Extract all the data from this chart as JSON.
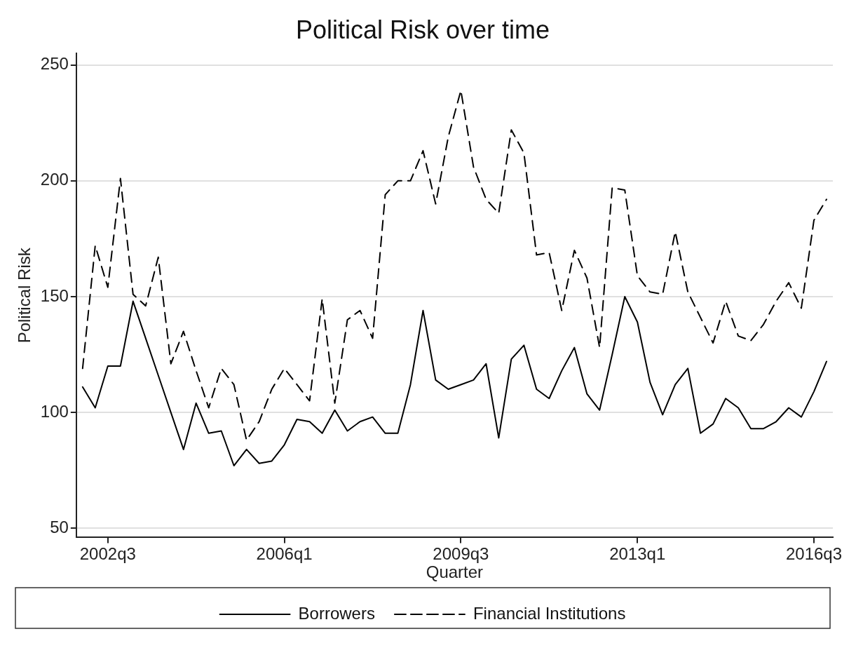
{
  "chart_data": {
    "type": "line",
    "title": "Political Risk over time",
    "xlabel": "Quarter",
    "ylabel": "Political Risk",
    "categories": [
      null,
      null,
      "2002q3",
      null,
      null,
      null,
      null,
      null,
      null,
      null,
      null,
      null,
      null,
      null,
      null,
      null,
      "2006q1",
      null,
      null,
      null,
      null,
      null,
      null,
      null,
      null,
      null,
      null,
      null,
      null,
      null,
      "2009q3",
      null,
      null,
      null,
      null,
      null,
      null,
      null,
      null,
      null,
      null,
      null,
      null,
      null,
      "2013q1",
      null,
      null,
      null,
      null,
      null,
      null,
      null,
      null,
      null,
      null,
      null,
      null,
      null,
      "2016q3",
      null
    ],
    "series": [
      {
        "name": "Borrowers",
        "color": "#000000",
        "line_style": "solid",
        "values": [
          111,
          102,
          120,
          120,
          148,
          132,
          116,
          100,
          84,
          104,
          91,
          92,
          77,
          84,
          78,
          79,
          86,
          97,
          96,
          91,
          101,
          92,
          96,
          98,
          91,
          91,
          112,
          144,
          114,
          110,
          112,
          114,
          121,
          89,
          123,
          129,
          110,
          106,
          118,
          128,
          108,
          101,
          125,
          150,
          139,
          113,
          99,
          112,
          119,
          91,
          95,
          106,
          102,
          93,
          93,
          96,
          102,
          98,
          109,
          122
        ]
      },
      {
        "name": "Financial Institutions",
        "color": "#000000",
        "line_style": "dashed",
        "values": [
          119,
          172,
          154,
          201,
          151,
          146,
          167,
          121,
          135,
          118,
          102,
          119,
          112,
          88,
          96,
          110,
          119,
          112,
          105,
          149,
          104,
          140,
          144,
          132,
          194,
          200,
          200,
          213,
          190,
          219,
          239,
          206,
          192,
          186,
          222,
          212,
          168,
          169,
          144,
          170,
          158,
          128,
          197,
          196,
          159,
          152,
          151,
          178,
          152,
          141,
          130,
          148,
          133,
          131,
          138,
          148,
          156,
          145,
          183,
          192
        ]
      }
    ],
    "ylim": [
      46,
      255
    ],
    "yticks": [
      50,
      100,
      150,
      200,
      250
    ],
    "grid": "y",
    "legend": "bottom",
    "marker": "none"
  }
}
